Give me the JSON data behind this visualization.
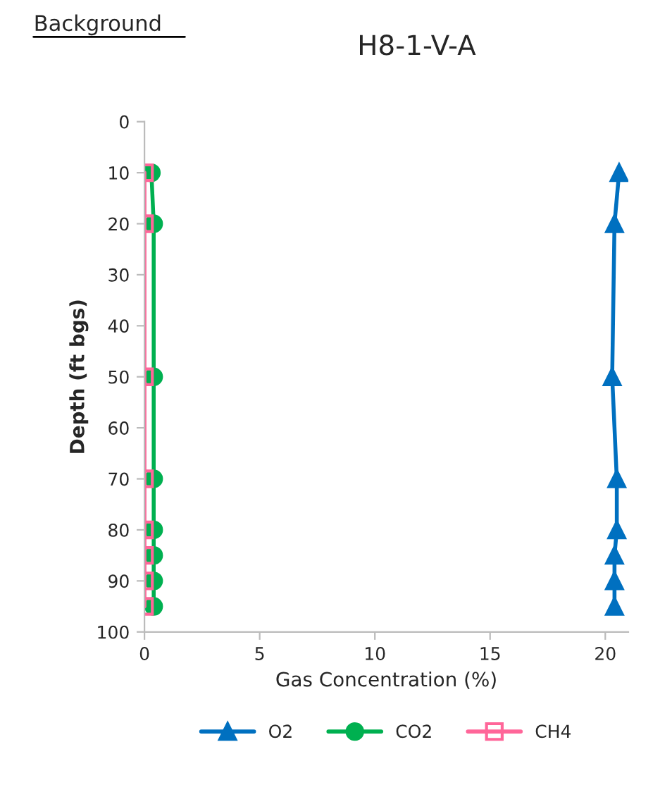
{
  "chart_data": {
    "type": "line",
    "title": "H8-1-V-A",
    "annotations": [
      "Background"
    ],
    "xlabel": "Gas Concentration (%)",
    "ylabel": "Depth (ft bgs)",
    "series": [
      {
        "name": "O2",
        "color": "#0070c0",
        "marker": "triangle",
        "x": [
          20.6,
          20.4,
          20.3,
          20.5,
          20.5,
          20.4,
          20.4,
          20.4
        ],
        "values": [
          10,
          20,
          50,
          70,
          80,
          85,
          90,
          95
        ]
      },
      {
        "name": "CO2",
        "color": "#00b050",
        "marker": "circle",
        "x": [
          0.3,
          0.4,
          0.4,
          0.4,
          0.4,
          0.4,
          0.4,
          0.4
        ],
        "values": [
          10,
          20,
          50,
          70,
          80,
          85,
          90,
          95
        ]
      },
      {
        "name": "CH4",
        "color": "#ff6699",
        "marker": "square",
        "x": [
          0,
          0,
          0,
          0,
          0,
          0,
          0,
          0
        ],
        "values": [
          10,
          20,
          50,
          70,
          80,
          85,
          90,
          95
        ]
      }
    ],
    "xlim": [
      0,
      21
    ],
    "xticks": [
      0,
      5,
      10,
      15,
      20
    ],
    "ylim": [
      100,
      0
    ],
    "yticks": [
      0,
      10,
      20,
      30,
      40,
      50,
      60,
      70,
      80,
      90,
      100
    ],
    "grid": false,
    "legend": "bottom",
    "line_style": "solid"
  }
}
